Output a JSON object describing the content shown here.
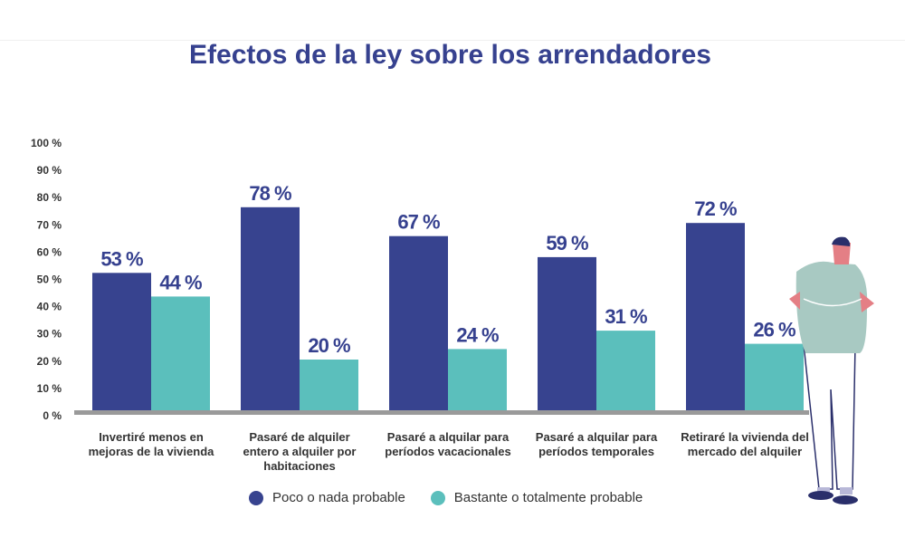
{
  "chart_data": {
    "type": "bar",
    "title": "Efectos de la ley sobre los arrendadores",
    "categories": [
      [
        "Invertiré menos en",
        "mejoras de la vivienda"
      ],
      [
        "Pasaré de alquiler",
        "entero a alquiler por",
        "habitaciones"
      ],
      [
        "Pasaré a alquilar para",
        "períodos vacacionales"
      ],
      [
        "Pasaré a alquilar para",
        "períodos temporales"
      ],
      [
        "Retiraré la vivienda del",
        "mercado del alquiler"
      ]
    ],
    "series": [
      {
        "name": "Poco o nada probable",
        "color": "#37438f",
        "values": [
          53,
          78,
          67,
          59,
          72
        ],
        "labels": [
          "53 %",
          "78 %",
          "67 %",
          "59 %",
          "72 %"
        ]
      },
      {
        "name": "Bastante o totalmente probable",
        "color": "#5bbfbc",
        "values": [
          44,
          20,
          24,
          31,
          26
        ],
        "labels": [
          "44 %",
          "20 %",
          "24 %",
          "31 %",
          "26 %"
        ]
      }
    ],
    "ylim": [
      0,
      100
    ],
    "yticks": [
      "0 %",
      "10 %",
      "20 %",
      "30 %",
      "40 %",
      "50 %",
      "60 %",
      "70 %",
      "80 %",
      "90 %",
      "100 %"
    ],
    "grid": false,
    "legend": "bottom"
  }
}
